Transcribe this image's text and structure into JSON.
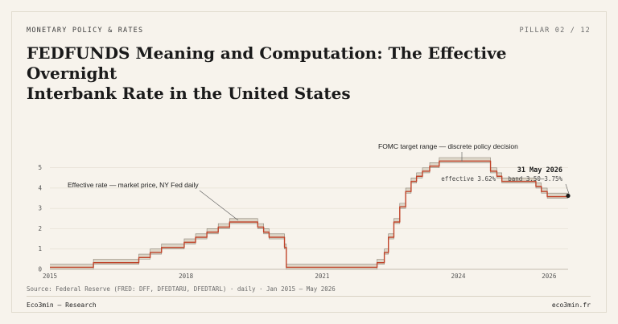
{
  "header": {
    "kicker": "MONETARY POLICY & RATES",
    "pillar": "PILLAR 02 / 12",
    "title_line1": "FEDFUNDS Meaning and Computation: The Effective Overnight",
    "title_line2": "Interbank Rate in the United States"
  },
  "footer": {
    "source": "Source: Federal Reserve (FRED: DFF, DFEDTARU, DFEDTARL) · daily · Jan 2015 – May 2026",
    "brand": "Eco3min — Research",
    "site": "eco3min.fr"
  },
  "colors": {
    "effective_line": "#c0442a",
    "band_fill": "#ddd6c8",
    "band_edge": "#8a8275",
    "grid": "#e6e0d4",
    "axis": "#b8b0a2"
  },
  "chart_data": {
    "type": "line",
    "xlim": [
      2015,
      2026.42
    ],
    "ylim": [
      0,
      5.5
    ],
    "x_ticks": [
      "2015",
      "2018",
      "2021",
      "2024",
      "2026"
    ],
    "y_ticks": [
      "0",
      "1",
      "2",
      "3",
      "4",
      "5"
    ],
    "band_steps": [
      {
        "from": 2015.0,
        "lower": 0.0,
        "upper": 0.25
      },
      {
        "from": 2015.96,
        "lower": 0.25,
        "upper": 0.5
      },
      {
        "from": 2016.96,
        "lower": 0.5,
        "upper": 0.75
      },
      {
        "from": 2017.21,
        "lower": 0.75,
        "upper": 1.0
      },
      {
        "from": 2017.46,
        "lower": 1.0,
        "upper": 1.25
      },
      {
        "from": 2017.96,
        "lower": 1.25,
        "upper": 1.5
      },
      {
        "from": 2018.21,
        "lower": 1.5,
        "upper": 1.75
      },
      {
        "from": 2018.46,
        "lower": 1.75,
        "upper": 2.0
      },
      {
        "from": 2018.71,
        "lower": 2.0,
        "upper": 2.25
      },
      {
        "from": 2018.96,
        "lower": 2.25,
        "upper": 2.5
      },
      {
        "from": 2019.58,
        "lower": 2.0,
        "upper": 2.25
      },
      {
        "from": 2019.71,
        "lower": 1.75,
        "upper": 2.0
      },
      {
        "from": 2019.83,
        "lower": 1.5,
        "upper": 1.75
      },
      {
        "from": 2020.17,
        "lower": 1.0,
        "upper": 1.25
      },
      {
        "from": 2020.21,
        "lower": 0.0,
        "upper": 0.25
      },
      {
        "from": 2022.21,
        "lower": 0.25,
        "upper": 0.5
      },
      {
        "from": 2022.37,
        "lower": 0.75,
        "upper": 1.0
      },
      {
        "from": 2022.46,
        "lower": 1.5,
        "upper": 1.75
      },
      {
        "from": 2022.58,
        "lower": 2.25,
        "upper": 2.5
      },
      {
        "from": 2022.71,
        "lower": 3.0,
        "upper": 3.25
      },
      {
        "from": 2022.84,
        "lower": 3.75,
        "upper": 4.0
      },
      {
        "from": 2022.96,
        "lower": 4.25,
        "upper": 4.5
      },
      {
        "from": 2023.08,
        "lower": 4.5,
        "upper": 4.75
      },
      {
        "from": 2023.21,
        "lower": 4.75,
        "upper": 5.0
      },
      {
        "from": 2023.37,
        "lower": 5.0,
        "upper": 5.25
      },
      {
        "from": 2023.58,
        "lower": 5.25,
        "upper": 5.5
      },
      {
        "from": 2024.71,
        "lower": 4.75,
        "upper": 5.0
      },
      {
        "from": 2024.85,
        "lower": 4.5,
        "upper": 4.75
      },
      {
        "from": 2024.96,
        "lower": 4.25,
        "upper": 4.5
      },
      {
        "from": 2025.71,
        "lower": 4.0,
        "upper": 4.25
      },
      {
        "from": 2025.83,
        "lower": 3.75,
        "upper": 4.0
      },
      {
        "from": 2025.96,
        "lower": 3.5,
        "upper": 3.75
      }
    ],
    "end_x": 2026.42,
    "effective_offset_near_zero": 0.1,
    "effective_offset": 0.08,
    "annotations": {
      "effective_label": "Effective rate — market price, NY Fed daily",
      "band_label": "FOMC target range — discrete policy decision",
      "end_date": "31 May 2026",
      "end_effective": "effective 3.62%",
      "end_band": "band 3.50–3.75%"
    },
    "end_point": {
      "x": 2026.42,
      "y": 3.62
    }
  }
}
